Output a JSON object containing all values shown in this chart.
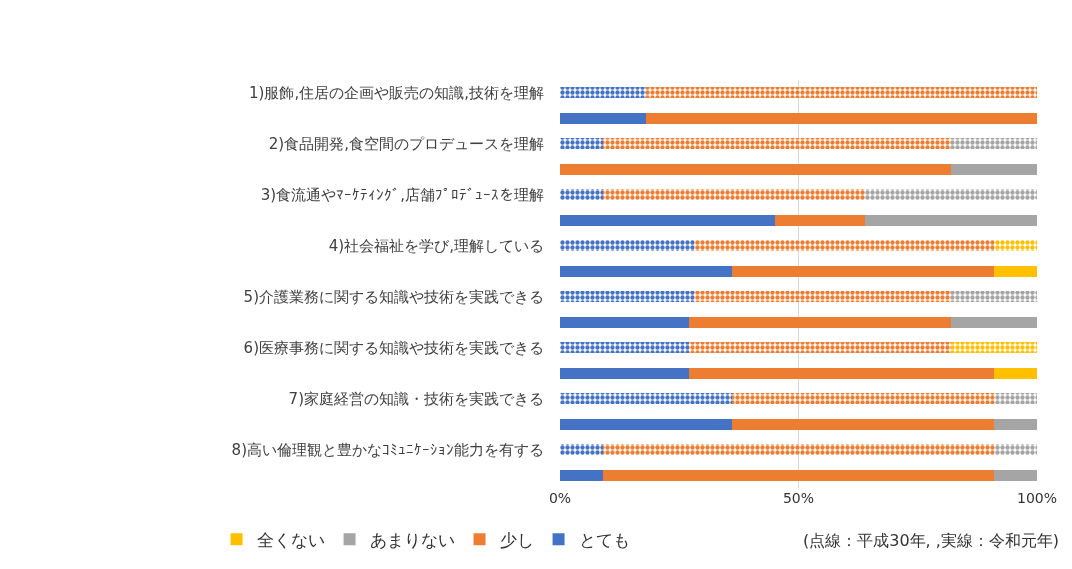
{
  "chart_data": {
    "type": "bar",
    "orientation": "horizontal",
    "stacked": true,
    "categories": [
      "1)服飾,住居の企画や販売の知識,技術を理解",
      null,
      "2)食品開発,食空間のプロデュースを理解",
      null,
      "3)食流通やﾏｰｹﾃｨﾝｸﾞ,店舗ﾌﾟﾛﾃﾞｭｰｽを理解",
      null,
      "4)社会福祉を学び,理解している",
      null,
      "5)介護業務に関する知識や技術を実践できる",
      null,
      "6)医療事務に関する知識や技術を実践できる",
      null,
      "7)家庭経営の知識・技術を実践できる",
      null,
      "8)高い倫理観と豊かなｺﾐｭﾆｹｰｼｮﾝ能力を有する",
      null
    ],
    "series": [
      {
        "name": "とても",
        "color": "#4472c4",
        "line_style": "solid",
        "values": [
          null,
          18,
          null,
          0,
          null,
          45,
          null,
          36,
          null,
          27,
          null,
          27,
          null,
          36,
          null,
          9
        ]
      },
      {
        "name": "少し",
        "color": "#ed7d31",
        "line_style": "solid",
        "values": [
          null,
          82,
          null,
          82,
          null,
          19,
          null,
          55,
          null,
          55,
          null,
          64,
          null,
          55,
          null,
          82
        ]
      },
      {
        "name": "あまりない",
        "color": "#a5a5a5",
        "line_style": "solid",
        "values": [
          null,
          0,
          null,
          18,
          null,
          36,
          null,
          0,
          null,
          18,
          null,
          0,
          null,
          9,
          null,
          9
        ]
      },
      {
        "name": "全くない",
        "color": "#ffc000",
        "line_style": "solid",
        "values": [
          null,
          0,
          null,
          0,
          null,
          0,
          null,
          9,
          null,
          0,
          null,
          9,
          null,
          0,
          null,
          0
        ]
      },
      {
        "color": "#4472c4",
        "line_style": "dotted",
        "values": [
          18,
          null,
          9,
          null,
          9,
          null,
          28,
          null,
          28,
          null,
          27,
          null,
          36,
          null,
          9,
          null
        ]
      },
      {
        "color": "#ed7d31",
        "line_style": "dotted",
        "values": [
          82,
          null,
          73,
          null,
          55,
          null,
          63,
          null,
          54,
          null,
          55,
          null,
          55,
          null,
          82,
          null
        ]
      },
      {
        "color": "#a5a5a5",
        "line_style": "dotted",
        "values": [
          0,
          null,
          18,
          null,
          36,
          null,
          0,
          null,
          18,
          null,
          0,
          null,
          9,
          null,
          9,
          null
        ]
      },
      {
        "color": "#ffc000",
        "line_style": "dotted",
        "values": [
          0,
          null,
          0,
          null,
          0,
          null,
          9,
          null,
          0,
          null,
          18,
          null,
          0,
          null,
          0,
          null
        ]
      }
    ],
    "xlim": [
      0,
      100
    ],
    "xticks": [
      {
        "value": 0,
        "label": "0%"
      },
      {
        "value": 50,
        "label": "50%"
      },
      {
        "value": 100,
        "label": "100%"
      }
    ],
    "grid": "x",
    "legend": "bottom left",
    "annotations": [
      "(点線：平成30年, ,実線：令和元年)"
    ]
  }
}
